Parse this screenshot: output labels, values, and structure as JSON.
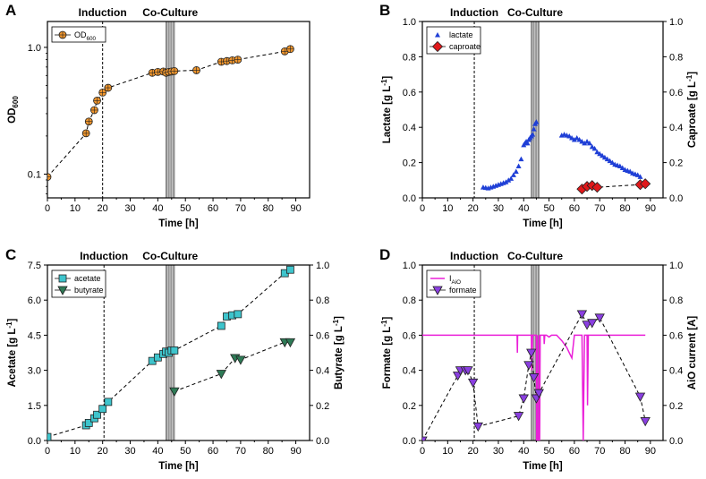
{
  "chart_data": [
    {
      "panel": "A",
      "type": "scatter",
      "title": "",
      "xlabel": "Time [h]",
      "ylabel": "OD600",
      "ylabel_main": "OD",
      "ylabel_sub": "600",
      "yscale": "log",
      "xlim": [
        0,
        95
      ],
      "ylim": [
        0.065,
        1.6
      ],
      "xticks": [
        0,
        10,
        20,
        30,
        40,
        50,
        60,
        70,
        80,
        90
      ],
      "yticks": [
        0.1,
        1.0
      ],
      "ytick_labels": [
        "0.1",
        "1.0"
      ],
      "annotations": [
        "Induction",
        "Co-Culture"
      ],
      "induction_x": 20,
      "coculture_x": [
        43,
        46
      ],
      "series": [
        {
          "name": "OD600",
          "legend_main": "OD",
          "legend_sub": "600",
          "axis": "left",
          "marker": "circle",
          "color": "#f0962d",
          "x": [
            0,
            14,
            15,
            17,
            18,
            20,
            22,
            38,
            40,
            42,
            43,
            44,
            45,
            46,
            54,
            63,
            65,
            67,
            69,
            86,
            88
          ],
          "y": [
            0.095,
            0.21,
            0.26,
            0.32,
            0.38,
            0.44,
            0.48,
            0.63,
            0.64,
            0.645,
            0.63,
            0.64,
            0.645,
            0.65,
            0.66,
            0.77,
            0.78,
            0.79,
            0.8,
            0.93,
            0.97
          ]
        }
      ]
    },
    {
      "panel": "B",
      "type": "scatter",
      "title": "",
      "xlabel": "Time [h]",
      "ylabel": "Lactate [g L-1]",
      "ylabel_main": "Lactate [g L",
      "ylabel_sup": "-1",
      "ylabel_end": "]",
      "ylabel_right": "Caproate [g L-1]",
      "ylabel_right_main": "Caproate [g L",
      "ylabel_right_sup": "-1",
      "ylabel_right_end": "]",
      "xlim": [
        0,
        95
      ],
      "ylim": [
        0,
        1.0
      ],
      "ylim_right": [
        0,
        1.0
      ],
      "xticks": [
        0,
        10,
        20,
        30,
        40,
        50,
        60,
        70,
        80,
        90
      ],
      "yticks": [
        0.0,
        0.2,
        0.4,
        0.6,
        0.8,
        1.0
      ],
      "ytick_labels": [
        "0.0",
        "0.2",
        "0.4",
        "0.6",
        "0.8",
        "1.0"
      ],
      "yticks_right": [
        0.0,
        0.2,
        0.4,
        0.6,
        0.8,
        1.0
      ],
      "ytick_labels_right": [
        "0.0",
        "0.2",
        "0.4",
        "0.6",
        "0.8",
        "1.0"
      ],
      "annotations": [
        "Induction",
        "Co-Culture"
      ],
      "induction_x": 20.5,
      "coculture_x": [
        43,
        46
      ],
      "series": [
        {
          "name": "lactate",
          "axis": "left",
          "marker": "triangle-up",
          "color": "#1f3fd6",
          "line": false,
          "x": [
            24,
            25,
            26,
            27,
            28,
            29,
            30,
            31,
            32,
            33,
            34,
            35,
            36,
            37,
            38,
            39,
            40,
            40.5,
            41,
            41.5,
            42,
            42.5,
            43,
            43.5,
            44,
            44.5,
            45,
            55,
            56,
            57,
            58,
            59,
            60,
            61,
            62,
            63,
            64,
            65,
            66,
            67,
            68,
            69,
            70,
            71,
            72,
            73,
            74,
            75,
            76,
            77,
            78,
            79,
            80,
            81,
            82,
            83,
            84,
            85,
            86
          ],
          "y": [
            0.06,
            0.058,
            0.055,
            0.06,
            0.065,
            0.07,
            0.075,
            0.08,
            0.085,
            0.09,
            0.1,
            0.11,
            0.13,
            0.15,
            0.18,
            0.22,
            0.3,
            0.31,
            0.32,
            0.31,
            0.33,
            0.34,
            0.35,
            0.36,
            0.39,
            0.42,
            0.43,
            0.355,
            0.36,
            0.355,
            0.35,
            0.34,
            0.33,
            0.34,
            0.33,
            0.32,
            0.31,
            0.32,
            0.31,
            0.29,
            0.28,
            0.26,
            0.25,
            0.24,
            0.23,
            0.22,
            0.21,
            0.2,
            0.19,
            0.185,
            0.18,
            0.17,
            0.16,
            0.155,
            0.15,
            0.14,
            0.135,
            0.13,
            0.12
          ]
        },
        {
          "name": "caproate",
          "axis": "right",
          "marker": "diamond",
          "color": "#e0191b",
          "line": true,
          "x": [
            63,
            65,
            67,
            69,
            86,
            88
          ],
          "y": [
            0.05,
            0.065,
            0.07,
            0.06,
            0.075,
            0.08
          ]
        }
      ]
    },
    {
      "panel": "C",
      "type": "scatter",
      "title": "",
      "xlabel": "Time [h]",
      "ylabel": "Acetate [g L-1]",
      "ylabel_main": "Acetate [g L",
      "ylabel_sup": "-1",
      "ylabel_end": "]",
      "ylabel_right": "Butyrate [g L-1]",
      "ylabel_right_main": "Butyrate [g L",
      "ylabel_right_sup": "-1",
      "ylabel_right_end": "]",
      "xlim": [
        0,
        95
      ],
      "ylim": [
        0,
        7.5
      ],
      "ylim_right": [
        0,
        1.0
      ],
      "xticks": [
        0,
        10,
        20,
        30,
        40,
        50,
        60,
        70,
        80,
        90
      ],
      "yticks": [
        0.0,
        1.5,
        3.0,
        4.5,
        6.0,
        7.5
      ],
      "ytick_labels": [
        "0.0",
        "1.5",
        "3.0",
        "4.5",
        "6.0",
        "7.5"
      ],
      "yticks_right": [
        0.0,
        0.2,
        0.4,
        0.6,
        0.8,
        1.0
      ],
      "ytick_labels_right": [
        "0.0",
        "0.2",
        "0.4",
        "0.6",
        "0.8",
        "1.0"
      ],
      "annotations": [
        "Induction",
        "Co-Culture"
      ],
      "induction_x": 20.5,
      "coculture_x": [
        43,
        46
      ],
      "series": [
        {
          "name": "acetate",
          "axis": "left",
          "marker": "square",
          "color": "#3ec4cc",
          "line": true,
          "x": [
            0,
            14,
            15,
            17,
            18,
            20,
            22,
            38,
            40,
            42,
            43,
            44,
            45,
            46,
            63,
            65,
            67,
            69,
            86,
            88
          ],
          "y": [
            0.15,
            0.65,
            0.75,
            0.95,
            1.1,
            1.35,
            1.65,
            3.4,
            3.55,
            3.7,
            3.8,
            3.75,
            3.85,
            3.85,
            4.9,
            5.3,
            5.35,
            5.4,
            7.15,
            7.3
          ]
        },
        {
          "name": "butyrate",
          "axis": "right",
          "marker": "triangle-down",
          "color": "#2e7a56",
          "line": true,
          "x": [
            46,
            63,
            68,
            70,
            86,
            88
          ],
          "y": [
            0.28,
            0.38,
            0.47,
            0.46,
            0.56,
            0.56
          ]
        }
      ]
    },
    {
      "panel": "D",
      "type": "scatter",
      "title": "",
      "xlabel": "Time [h]",
      "ylabel": "Formate [g L-1]",
      "ylabel_main": "Formate [g L",
      "ylabel_sup": "-1",
      "ylabel_end": "]",
      "ylabel_right": "AiO current [A]",
      "xlim": [
        0,
        95
      ],
      "ylim": [
        0,
        1.0
      ],
      "ylim_right": [
        0,
        1.0
      ],
      "xticks": [
        0,
        10,
        20,
        30,
        40,
        50,
        60,
        70,
        80,
        90
      ],
      "yticks": [
        0.0,
        0.2,
        0.4,
        0.6,
        0.8,
        1.0
      ],
      "ytick_labels": [
        "0.0",
        "0.2",
        "0.4",
        "0.6",
        "0.8",
        "1.0"
      ],
      "yticks_right": [
        0.0,
        0.2,
        0.4,
        0.6,
        0.8,
        1.0
      ],
      "ytick_labels_right": [
        "0.0",
        "0.2",
        "0.4",
        "0.6",
        "0.8",
        "1.0"
      ],
      "annotations": [
        "Induction",
        "Co-Culture"
      ],
      "induction_x": 20.5,
      "coculture_x": [
        43,
        46
      ],
      "series": [
        {
          "name": "IAiO",
          "legend_main": "I",
          "legend_sub": "AiO",
          "axis": "right",
          "marker": "none",
          "color": "#ea1fd8",
          "line": true,
          "x": [
            0,
            37.4,
            37.5,
            37.6,
            38,
            43,
            43.2,
            43.5,
            45,
            45.1,
            45.3,
            45.5,
            46.0,
            46.1,
            46.3,
            46.5,
            47,
            48,
            48.1,
            48.3,
            49,
            50,
            51,
            52,
            53,
            55,
            56,
            57,
            58,
            59,
            60,
            61,
            62,
            62.5,
            63,
            63.5,
            64,
            64.5,
            65,
            65.2,
            65.5,
            66,
            66.2,
            66.5,
            70,
            80,
            88
          ],
          "y": [
            0.6,
            0.6,
            0.5,
            0.6,
            0.6,
            0.6,
            0.4,
            0.6,
            0.6,
            0.0,
            0.6,
            0.0,
            0.0,
            0.6,
            0.0,
            0.6,
            0.6,
            0.6,
            0.55,
            0.6,
            0.6,
            0.59,
            0.6,
            0.6,
            0.6,
            0.57,
            0.55,
            0.53,
            0.5,
            0.47,
            0.6,
            0.6,
            0.6,
            0.6,
            0.6,
            0.0,
            0.6,
            0.6,
            0.6,
            0.2,
            0.6,
            0.6,
            0.6,
            0.6,
            0.6,
            0.6,
            0.6
          ]
        },
        {
          "name": "formate",
          "axis": "left",
          "marker": "triangle-down",
          "color": "#8a3fe0",
          "line": true,
          "x": [
            0,
            14,
            15,
            17,
            18,
            20,
            22,
            38,
            40,
            42,
            43,
            44,
            45,
            46,
            63,
            65,
            67,
            70,
            86,
            88
          ],
          "y": [
            0.0,
            0.37,
            0.4,
            0.4,
            0.4,
            0.33,
            0.08,
            0.14,
            0.24,
            0.43,
            0.5,
            0.36,
            0.24,
            0.27,
            0.72,
            0.66,
            0.67,
            0.7,
            0.25,
            0.11
          ]
        }
      ]
    }
  ]
}
